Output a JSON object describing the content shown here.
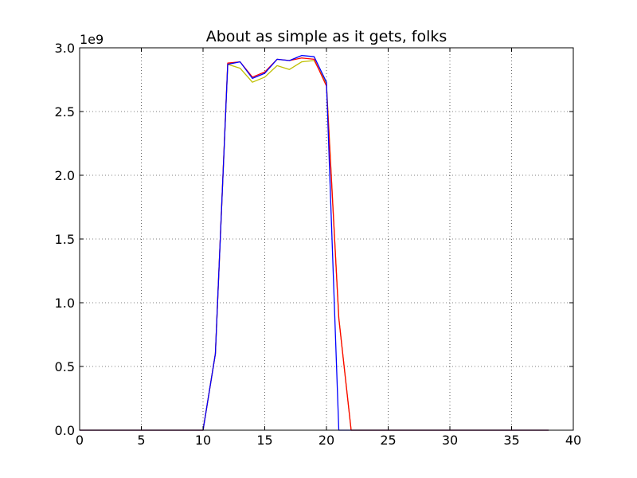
{
  "chart_data": {
    "type": "line",
    "title": "About as simple as it gets, folks",
    "xlabel": "",
    "ylabel": "",
    "y_offset_label": "1e9",
    "xlim": [
      0,
      40
    ],
    "ylim": [
      0,
      3.0
    ],
    "y_scale_factor": 1000000000,
    "grid": true,
    "x_ticks": [
      0,
      5,
      10,
      15,
      20,
      25,
      30,
      35,
      40
    ],
    "x_tick_labels": [
      "0",
      "5",
      "10",
      "15",
      "20",
      "25",
      "30",
      "35",
      "40"
    ],
    "y_ticks": [
      0,
      0.5,
      1.0,
      1.5,
      2.0,
      2.5,
      3.0
    ],
    "y_tick_labels": [
      "0.0",
      "0.5",
      "1.0",
      "1.5",
      "2.0",
      "2.5",
      "3.0"
    ],
    "series": [
      {
        "color": "#bfbf00",
        "x": [
          0,
          1,
          2,
          3,
          4,
          5,
          6,
          7,
          8,
          9,
          10,
          11,
          12,
          13,
          14,
          15,
          16,
          17,
          18,
          19,
          20,
          21,
          22,
          23,
          24,
          25,
          26,
          27,
          28,
          29,
          30,
          31,
          32,
          33,
          34,
          35,
          36,
          37,
          38
        ],
        "y": [
          0,
          0,
          0,
          0,
          0,
          0,
          0,
          0,
          0,
          0,
          0,
          0.6,
          2.87,
          2.84,
          2.73,
          2.77,
          2.86,
          2.83,
          2.89,
          2.9,
          2.72,
          0.88,
          0,
          0,
          0,
          0,
          0,
          0,
          0,
          0,
          0,
          0,
          0,
          0,
          0,
          0,
          0,
          0,
          0
        ]
      },
      {
        "color": "#ff0000",
        "x": [
          0,
          1,
          2,
          3,
          4,
          5,
          6,
          7,
          8,
          9,
          10,
          11,
          12,
          13,
          14,
          15,
          16,
          17,
          18,
          19,
          20,
          21,
          22,
          23,
          24,
          25,
          26,
          27,
          28,
          29,
          30,
          31,
          32,
          33,
          34,
          35,
          36,
          37,
          38
        ],
        "y": [
          0,
          0,
          0,
          0,
          0,
          0,
          0,
          0,
          0,
          0,
          0,
          0.6,
          2.88,
          2.89,
          2.77,
          2.81,
          2.91,
          2.9,
          2.92,
          2.91,
          2.7,
          0.88,
          0,
          0,
          0,
          0,
          0,
          0,
          0,
          0,
          0,
          0,
          0,
          0,
          0,
          0,
          0,
          0,
          0
        ]
      },
      {
        "color": "#0000ff",
        "x": [
          0,
          1,
          2,
          3,
          4,
          5,
          6,
          7,
          8,
          9,
          10,
          11,
          12,
          13,
          14,
          15,
          16,
          17,
          18,
          19,
          20,
          21,
          22,
          23,
          24,
          25,
          26,
          27,
          28,
          29,
          30,
          31,
          32,
          33,
          34,
          35,
          36,
          37,
          38
        ],
        "y": [
          0,
          0,
          0,
          0,
          0,
          0,
          0,
          0,
          0,
          0,
          0,
          0.6,
          2.87,
          2.89,
          2.76,
          2.8,
          2.91,
          2.9,
          2.94,
          2.93,
          2.73,
          0,
          0,
          0,
          0,
          0,
          0,
          0,
          0,
          0,
          0,
          0,
          0,
          0,
          0,
          0,
          0,
          0,
          0
        ]
      }
    ]
  }
}
